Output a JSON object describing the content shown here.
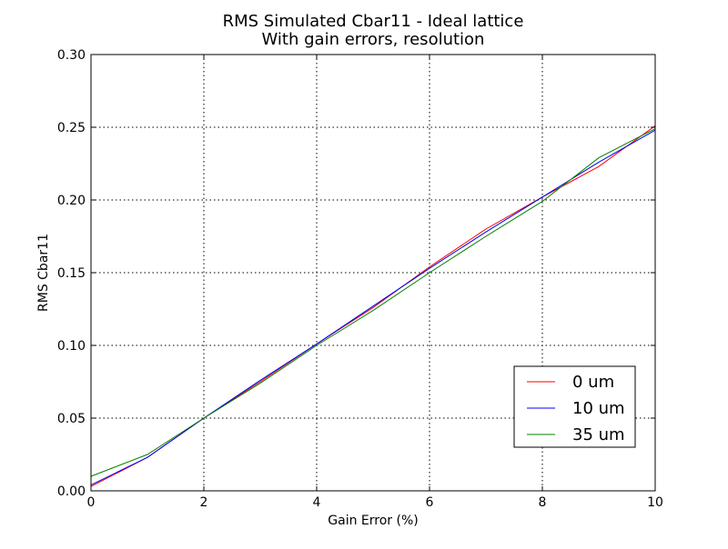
{
  "chart_data": {
    "type": "line",
    "title": "RMS Simulated Cbar11 - Ideal lattice",
    "subtitle": "With gain errors, resolution",
    "xlabel": "Gain Error (%)",
    "ylabel": "RMS Cbar11",
    "xlim": [
      0,
      10
    ],
    "ylim": [
      0.0,
      0.3
    ],
    "xticks": [
      0,
      2,
      4,
      6,
      8,
      10
    ],
    "xtick_labels": [
      "0",
      "2",
      "4",
      "6",
      "8",
      "10"
    ],
    "yticks": [
      0.0,
      0.05,
      0.1,
      0.15,
      0.2,
      0.25,
      0.3
    ],
    "ytick_labels": [
      "0.00",
      "0.05",
      "0.10",
      "0.15",
      "0.20",
      "0.25",
      "0.30"
    ],
    "grid": true,
    "legend_position": "lower-right",
    "x": [
      0,
      1,
      2,
      3,
      4,
      5,
      6,
      7,
      8,
      9,
      10
    ],
    "series": [
      {
        "name": "0 um",
        "color": "#ff0000",
        "values": [
          0.003,
          0.023,
          0.05,
          0.075,
          0.101,
          0.126,
          0.154,
          0.18,
          0.202,
          0.223,
          0.251
        ]
      },
      {
        "name": "10 um",
        "color": "#0000ff",
        "values": [
          0.004,
          0.023,
          0.05,
          0.076,
          0.101,
          0.127,
          0.153,
          0.178,
          0.202,
          0.226,
          0.248
        ]
      },
      {
        "name": "35 um",
        "color": "#008000",
        "values": [
          0.01,
          0.025,
          0.05,
          0.074,
          0.1,
          0.124,
          0.15,
          0.175,
          0.199,
          0.229,
          0.249
        ]
      }
    ]
  }
}
